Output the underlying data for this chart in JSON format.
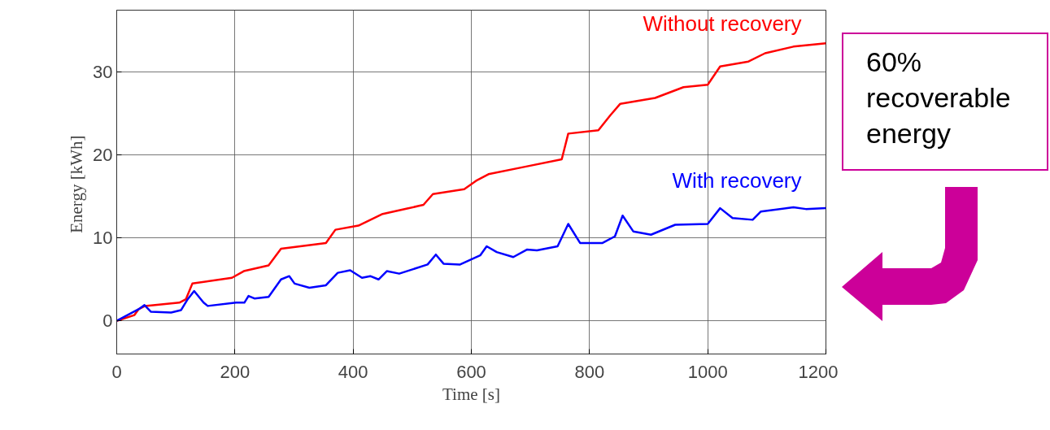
{
  "chart_data": {
    "type": "line",
    "xlabel": "Time [s]",
    "ylabel": "Energy  [kWh]",
    "xlim": [
      0,
      1200
    ],
    "ylim": [
      -4,
      37.5
    ],
    "xticks": [
      0,
      200,
      400,
      600,
      800,
      1000,
      1200
    ],
    "yticks": [
      0,
      10,
      20,
      30
    ],
    "grid": true,
    "series": [
      {
        "name": "Without recovery",
        "color": "#ff0000",
        "x": [
          0,
          30,
          37,
          48,
          106,
          117,
          128,
          195,
          215,
          257,
          278,
          354,
          370,
          409,
          450,
          519,
          535,
          588,
          608,
          629,
          691,
          753,
          764,
          815,
          835,
          852,
          911,
          959,
          1000,
          1021,
          1069,
          1097,
          1145,
          1200
        ],
        "values": [
          0,
          0.7,
          1.4,
          1.8,
          2.2,
          2.6,
          4.5,
          5.2,
          6.0,
          6.7,
          8.7,
          9.4,
          11.0,
          11.5,
          12.9,
          14.0,
          15.3,
          15.9,
          16.9,
          17.7,
          18.6,
          19.5,
          22.6,
          23.0,
          24.8,
          26.2,
          26.9,
          28.2,
          28.5,
          30.7,
          31.3,
          32.3,
          33.1,
          33.5
        ]
      },
      {
        "name": "With recovery",
        "color": "#0000ff",
        "x": [
          0,
          37,
          47,
          58,
          92,
          109,
          120,
          131,
          147,
          154,
          202,
          216,
          223,
          233,
          257,
          278,
          292,
          301,
          326,
          354,
          374,
          395,
          415,
          429,
          443,
          457,
          478,
          526,
          540,
          553,
          581,
          615,
          626,
          643,
          671,
          694,
          711,
          746,
          764,
          784,
          822,
          843,
          856,
          874,
          904,
          945,
          1000,
          1021,
          1042,
          1076,
          1090,
          1145,
          1166,
          1200
        ],
        "values": [
          0,
          1.4,
          1.9,
          1.1,
          1.0,
          1.3,
          2.6,
          3.6,
          2.2,
          1.8,
          2.2,
          2.2,
          3.0,
          2.7,
          2.9,
          5.0,
          5.4,
          4.5,
          4.0,
          4.3,
          5.8,
          6.1,
          5.2,
          5.4,
          5.0,
          6.0,
          5.7,
          6.8,
          8.0,
          6.9,
          6.8,
          7.9,
          9.0,
          8.3,
          7.7,
          8.6,
          8.5,
          9.0,
          11.7,
          9.4,
          9.4,
          10.2,
          12.7,
          10.8,
          10.4,
          11.6,
          11.7,
          13.6,
          12.4,
          12.2,
          13.2,
          13.7,
          13.5,
          13.6
        ]
      }
    ],
    "annotations": [
      "60%\nrecoverable\nenergy"
    ]
  }
}
